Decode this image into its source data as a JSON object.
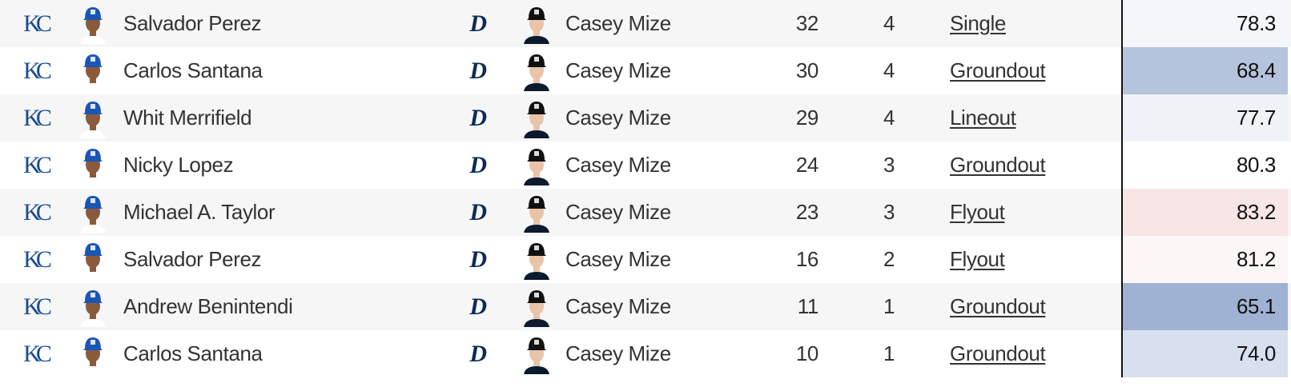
{
  "rows": [
    {
      "batter_team": "KC",
      "batter": "Salvador Perez",
      "pitcher_team": "D",
      "pitcher": "Casey Mize",
      "pitch_count": "32",
      "inning": "4",
      "result": "Single",
      "value": "78.3",
      "value_color": "#f4f6fa"
    },
    {
      "batter_team": "KC",
      "batter": "Carlos Santana",
      "pitcher_team": "D",
      "pitcher": "Casey Mize",
      "pitch_count": "30",
      "inning": "4",
      "result": "Groundout",
      "value": "68.4",
      "value_color": "#b5c4dd"
    },
    {
      "batter_team": "KC",
      "batter": "Whit Merrifield",
      "pitcher_team": "D",
      "pitcher": "Casey Mize",
      "pitch_count": "29",
      "inning": "4",
      "result": "Lineout",
      "value": "77.7",
      "value_color": "#eff3f8"
    },
    {
      "batter_team": "KC",
      "batter": "Nicky Lopez",
      "pitcher_team": "D",
      "pitcher": "Casey Mize",
      "pitch_count": "24",
      "inning": "3",
      "result": "Groundout",
      "value": "80.3",
      "value_color": "#ffffff"
    },
    {
      "batter_team": "KC",
      "batter": "Michael A. Taylor",
      "pitcher_team": "D",
      "pitcher": "Casey Mize",
      "pitch_count": "23",
      "inning": "3",
      "result": "Flyout",
      "value": "83.2",
      "value_color": "#f8e6e6"
    },
    {
      "batter_team": "KC",
      "batter": "Salvador Perez",
      "pitcher_team": "D",
      "pitcher": "Casey Mize",
      "pitch_count": "16",
      "inning": "2",
      "result": "Flyout",
      "value": "81.2",
      "value_color": "#fcf6f6"
    },
    {
      "batter_team": "KC",
      "batter": "Andrew Benintendi",
      "pitcher_team": "D",
      "pitcher": "Casey Mize",
      "pitch_count": "11",
      "inning": "1",
      "result": "Groundout",
      "value": "65.1",
      "value_color": "#9fb2d3"
    },
    {
      "batter_team": "KC",
      "batter": "Carlos Santana",
      "pitcher_team": "D",
      "pitcher": "Casey Mize",
      "pitch_count": "10",
      "inning": "1",
      "result": "Groundout",
      "value": "74.0",
      "value_color": "#d8e0ef"
    }
  ]
}
